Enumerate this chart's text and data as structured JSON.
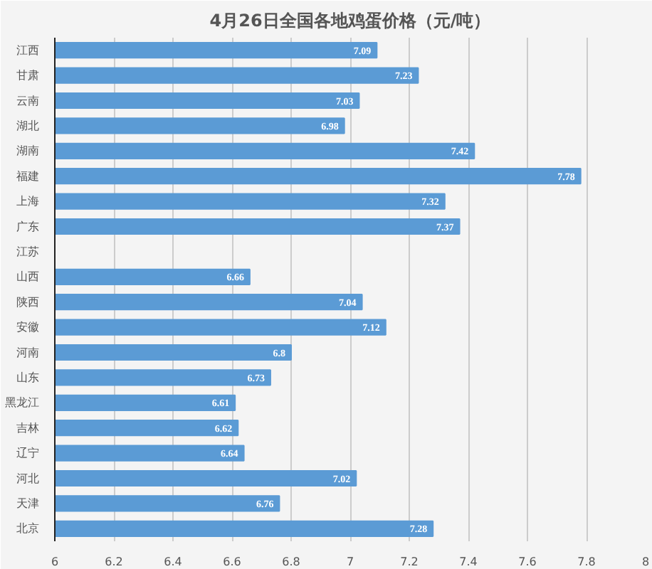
{
  "chart_data": {
    "type": "bar",
    "orientation": "horizontal",
    "title": "4月26日全国各地鸡蛋价格（元/吨）",
    "categories": [
      "江西",
      "甘肃",
      "云南",
      "湖北",
      "湖南",
      "福建",
      "上海",
      "广东",
      "江苏",
      "山西",
      "陕西",
      "安徽",
      "河南",
      "山东",
      "黑龙江",
      "吉林",
      "辽宁",
      "河北",
      "天津",
      "北京"
    ],
    "values": [
      7.09,
      7.23,
      7.03,
      6.98,
      7.42,
      7.78,
      7.32,
      7.37,
      null,
      6.66,
      7.04,
      7.12,
      6.8,
      6.73,
      6.61,
      6.62,
      6.64,
      7.02,
      6.76,
      7.28
    ],
    "color": "#5b9bd5",
    "xlim": [
      6,
      8
    ],
    "xticks": [
      6,
      6.2,
      6.4,
      6.6,
      6.8,
      7,
      7.2,
      7.4,
      7.6,
      7.8,
      8
    ],
    "grid": "x",
    "data_labels": true
  }
}
